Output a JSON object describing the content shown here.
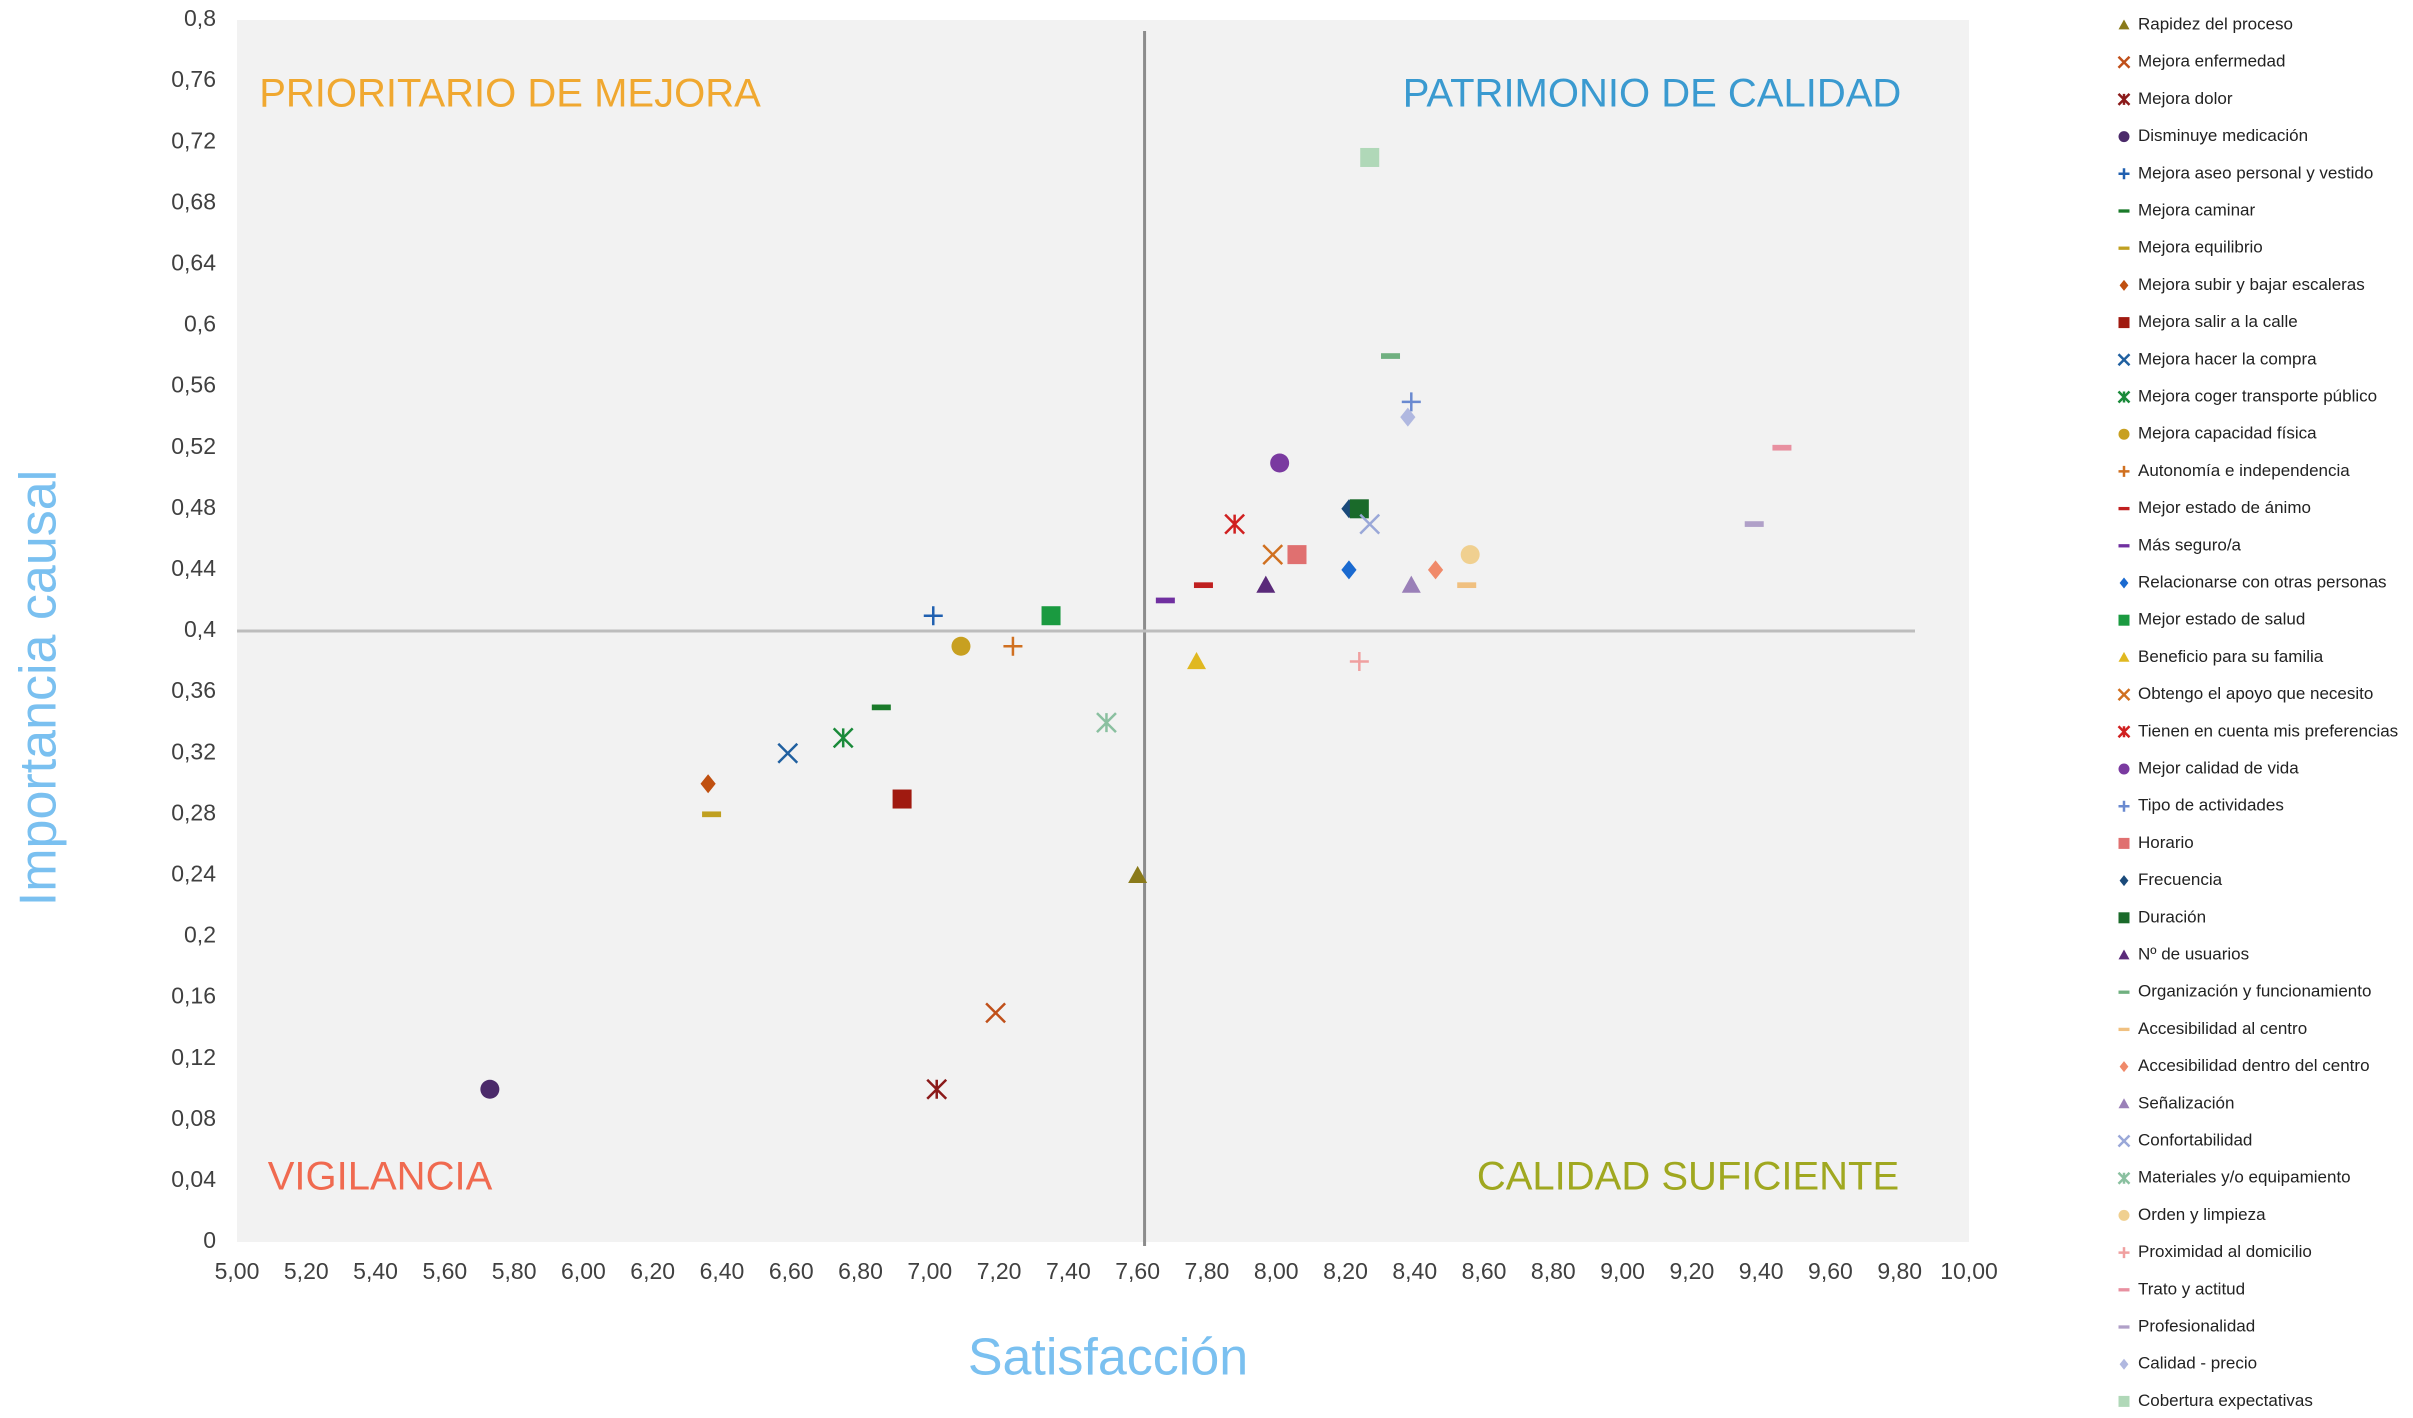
{
  "chart_data": {
    "type": "scatter",
    "xlabel": "Satisfacción",
    "ylabel": "Importancia causal",
    "xlim": [
      5,
      10
    ],
    "ylim": [
      0,
      0.8
    ],
    "xticks": [
      {
        "value": 5,
        "label": "5,00"
      },
      {
        "value": 5.2,
        "label": "5,20"
      },
      {
        "value": 5.4,
        "label": "5,40"
      },
      {
        "value": 5.6,
        "label": "5,60"
      },
      {
        "value": 5.8,
        "label": "5,80"
      },
      {
        "value": 6,
        "label": "6,00"
      },
      {
        "value": 6.2,
        "label": "6,20"
      },
      {
        "value": 6.4,
        "label": "6,40"
      },
      {
        "value": 6.6,
        "label": "6,60"
      },
      {
        "value": 6.8,
        "label": "6,80"
      },
      {
        "value": 7,
        "label": "7,00"
      },
      {
        "value": 7.2,
        "label": "7,20"
      },
      {
        "value": 7.4,
        "label": "7,40"
      },
      {
        "value": 7.6,
        "label": "7,60"
      },
      {
        "value": 7.8,
        "label": "7,80"
      },
      {
        "value": 8,
        "label": "8,00"
      },
      {
        "value": 8.2,
        "label": "8,20"
      },
      {
        "value": 8.4,
        "label": "8,40"
      },
      {
        "value": 8.6,
        "label": "8,60"
      },
      {
        "value": 8.8,
        "label": "8,80"
      },
      {
        "value": 9,
        "label": "9,00"
      },
      {
        "value": 9.2,
        "label": "9,20"
      },
      {
        "value": 9.4,
        "label": "9,40"
      },
      {
        "value": 9.6,
        "label": "9,60"
      },
      {
        "value": 9.8,
        "label": "9,80"
      },
      {
        "value": 10,
        "label": "10,00"
      }
    ],
    "yticks": [
      0,
      {
        "value": 0.04,
        "label": "0,04"
      },
      {
        "value": 0.08,
        "label": "0,08"
      },
      {
        "value": 0.12,
        "label": "0,12"
      },
      {
        "value": 0.16,
        "label": "0,16"
      },
      {
        "value": 0.2,
        "label": "0,2"
      },
      {
        "value": 0.24,
        "label": "0,24"
      },
      {
        "value": 0.28,
        "label": "0,28"
      },
      {
        "value": 0.32,
        "label": "0,32"
      },
      {
        "value": 0.36,
        "label": "0,36"
      },
      {
        "value": 0.4,
        "label": "0,4"
      },
      {
        "value": 0.44,
        "label": "0,44"
      },
      {
        "value": 0.48,
        "label": "0,48"
      },
      {
        "value": 0.52,
        "label": "0,52"
      },
      {
        "value": 0.56,
        "label": "0,56"
      },
      {
        "value": 0.6,
        "label": "0,6"
      },
      {
        "value": 0.64,
        "label": "0,64"
      },
      {
        "value": 0.68,
        "label": "0,68"
      },
      {
        "value": 0.72,
        "label": "0,72"
      },
      {
        "value": 0.76,
        "label": "0,76"
      },
      {
        "value": 0.8,
        "label": "0,8"
      }
    ],
    "reference_lines": {
      "x": 7.62,
      "y": 0.4
    },
    "annotations": [
      {
        "text": "PRIORITARIO DE MEJORA",
        "color": "#f0a830"
      },
      {
        "text": "PATRIMONIO DE CALIDAD",
        "color": "#3a9ad0"
      },
      {
        "text": "VIGILANCIA",
        "color": "#f06a50"
      },
      {
        "text": "CALIDAD SUFICIENTE",
        "color": "#a0a820"
      }
    ],
    "legend": "right",
    "series": [
      {
        "name": "Rapidez del proceso",
        "color": "#8a7a1a",
        "marker": "triangle",
        "x": [
          7.6
        ],
        "values": [
          0.24
        ]
      },
      {
        "name": "Mejora enfermedad",
        "color": "#c0501a",
        "marker": "x",
        "x": [
          7.19
        ],
        "values": [
          0.15
        ]
      },
      {
        "name": "Mejora dolor",
        "color": "#8b1a1a",
        "marker": "star",
        "x": [
          7.02
        ],
        "values": [
          0.1
        ]
      },
      {
        "name": "Disminuye medicación",
        "color": "#4b2a6a",
        "marker": "circle",
        "x": [
          5.73
        ],
        "values": [
          0.1
        ]
      },
      {
        "name": "Mejora aseo personal y vestido",
        "color": "#2060b0",
        "marker": "plus",
        "x": [
          7.01
        ],
        "values": [
          0.41
        ]
      },
      {
        "name": "Mejora caminar",
        "color": "#1a7a2a",
        "marker": "dash",
        "x": [
          6.86
        ],
        "values": [
          0.35
        ]
      },
      {
        "name": "Mejora equilibrio",
        "color": "#c0a020",
        "marker": "dash",
        "x": [
          6.37
        ],
        "values": [
          0.28
        ]
      },
      {
        "name": "Mejora subir y bajar escaleras",
        "color": "#c05010",
        "marker": "diamond",
        "x": [
          6.36
        ],
        "values": [
          0.3
        ]
      },
      {
        "name": "Mejora salir a la calle",
        "color": "#a01a10",
        "marker": "square",
        "x": [
          6.92
        ],
        "values": [
          0.29
        ]
      },
      {
        "name": "Mejora hacer la compra",
        "color": "#2060a0",
        "marker": "x",
        "x": [
          6.59
        ],
        "values": [
          0.32
        ]
      },
      {
        "name": "Mejora coger transporte público",
        "color": "#1a8a3a",
        "marker": "star",
        "x": [
          6.75
        ],
        "values": [
          0.33
        ]
      },
      {
        "name": "Mejora capacidad física",
        "color": "#c8a020",
        "marker": "circle",
        "x": [
          7.09
        ],
        "values": [
          0.39
        ]
      },
      {
        "name": "Autonomía e independencia",
        "color": "#d07020",
        "marker": "plus",
        "x": [
          7.24
        ],
        "values": [
          0.39
        ]
      },
      {
        "name": "Mejor estado de ánimo",
        "color": "#c02020",
        "marker": "dash",
        "x": [
          7.79
        ],
        "values": [
          0.43
        ]
      },
      {
        "name": "Más seguro/a",
        "color": "#7030a0",
        "marker": "dash",
        "x": [
          7.68
        ],
        "values": [
          0.42
        ]
      },
      {
        "name": "Relacionarse con otras personas",
        "color": "#1a6ad0",
        "marker": "diamond",
        "x": [
          8.21
        ],
        "values": [
          0.44
        ]
      },
      {
        "name": "Mejor estado de salud",
        "color": "#1a9a40",
        "marker": "square",
        "x": [
          7.35
        ],
        "values": [
          0.41
        ]
      },
      {
        "name": "Beneficio para su familia",
        "color": "#e0b820",
        "marker": "triangle",
        "x": [
          7.77
        ],
        "values": [
          0.38
        ]
      },
      {
        "name": "Obtengo el apoyo que necesito",
        "color": "#d07020",
        "marker": "x",
        "x": [
          7.99
        ],
        "values": [
          0.45
        ]
      },
      {
        "name": "Tienen en cuenta mis preferencias",
        "color": "#d02020",
        "marker": "star",
        "x": [
          7.88
        ],
        "values": [
          0.47
        ]
      },
      {
        "name": "Mejor calidad de vida",
        "color": "#7a3aa0",
        "marker": "circle",
        "x": [
          8.01
        ],
        "values": [
          0.51
        ]
      },
      {
        "name": "Tipo de actividades",
        "color": "#6a8ad0",
        "marker": "plus",
        "x": [
          8.39
        ],
        "values": [
          0.55
        ]
      },
      {
        "name": "Horario",
        "color": "#e07070",
        "marker": "square",
        "x": [
          8.06
        ],
        "values": [
          0.45
        ]
      },
      {
        "name": "Frecuencia",
        "color": "#1a4a7a",
        "marker": "diamond",
        "x": [
          8.21
        ],
        "values": [
          0.48
        ]
      },
      {
        "name": "Duración",
        "color": "#1a6a2a",
        "marker": "square",
        "x": [
          8.24
        ],
        "values": [
          0.48
        ]
      },
      {
        "name": "Nº de usuarios",
        "color": "#5a2a7a",
        "marker": "triangle",
        "x": [
          7.97
        ],
        "values": [
          0.43
        ]
      },
      {
        "name": "Organización y funcionamiento",
        "color": "#70b080",
        "marker": "dash",
        "x": [
          8.33
        ],
        "values": [
          0.58
        ]
      },
      {
        "name": "Accesibilidad al centro",
        "color": "#f0c080",
        "marker": "dash",
        "x": [
          8.55
        ],
        "values": [
          0.43
        ]
      },
      {
        "name": "Accesibilidad dentro del centro",
        "color": "#f08a6a",
        "marker": "diamond",
        "x": [
          8.46
        ],
        "values": [
          0.44
        ]
      },
      {
        "name": "Señalización",
        "color": "#9a80b8",
        "marker": "triangle",
        "x": [
          8.39
        ],
        "values": [
          0.43
        ]
      },
      {
        "name": "Confortabilidad",
        "color": "#9aa8d8",
        "marker": "x",
        "x": [
          8.27
        ],
        "values": [
          0.47
        ]
      },
      {
        "name": "Materiales y/o equipamiento",
        "color": "#8ac0a0",
        "marker": "star",
        "x": [
          7.51
        ],
        "values": [
          0.34
        ]
      },
      {
        "name": "Orden y limpieza",
        "color": "#f0d090",
        "marker": "circle",
        "x": [
          8.56
        ],
        "values": [
          0.45
        ]
      },
      {
        "name": "Proximidad al domicilio",
        "color": "#f0a0a0",
        "marker": "plus",
        "x": [
          8.24
        ],
        "values": [
          0.38
        ]
      },
      {
        "name": "Trato y actitud",
        "color": "#e890a0",
        "marker": "dash",
        "x": [
          9.46
        ],
        "values": [
          0.52
        ]
      },
      {
        "name": "Profesionalidad",
        "color": "#b0a0c8",
        "marker": "dash",
        "x": [
          9.38
        ],
        "values": [
          0.47
        ]
      },
      {
        "name": "Calidad - precio",
        "color": "#b0b8e0",
        "marker": "diamond",
        "x": [
          8.38
        ],
        "values": [
          0.54
        ]
      },
      {
        "name": "Cobertura expectativas",
        "color": "#b0d8b8",
        "marker": "square",
        "x": [
          8.27
        ],
        "values": [
          0.71
        ]
      }
    ]
  }
}
